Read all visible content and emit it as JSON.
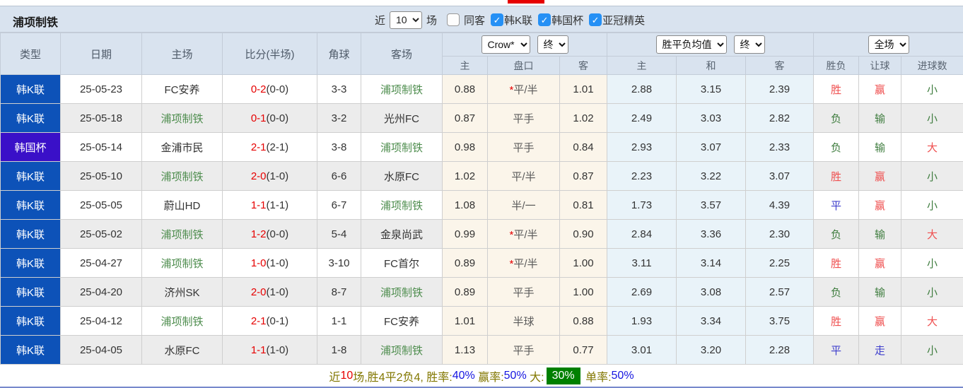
{
  "title": "浦项制铁",
  "controls": {
    "recent_label": "近",
    "recent_value": "10",
    "matches_label": "场",
    "checkboxes": [
      {
        "label": "同客",
        "checked": false
      },
      {
        "label": "韩K联",
        "checked": true
      },
      {
        "label": "韩国杯",
        "checked": true
      },
      {
        "label": "亚冠精英",
        "checked": true
      }
    ]
  },
  "header": {
    "cols": [
      "类型",
      "日期",
      "主场",
      "比分(半场)",
      "角球",
      "客场"
    ],
    "odds_company_select": "Crow*",
    "odds_stage_select": "终",
    "avg_select": "胜平负均值",
    "avg_stage_select": "终",
    "scope_select": "全场",
    "sub": [
      "主",
      "盘口",
      "客",
      "主",
      "和",
      "客",
      "胜负",
      "让球",
      "进球数"
    ]
  },
  "rows": [
    {
      "type": "韩K联",
      "type_cls": "kleague",
      "date": "25-05-23",
      "home": "FC安养",
      "home_green": false,
      "ft": "0-2",
      "ht": "(0-0)",
      "corner": "3-3",
      "away": "浦项制铁",
      "away_green": true,
      "o1": "0.88",
      "star": true,
      "hcp": "平/半",
      "o2": "1.01",
      "a1": "2.88",
      "a2": "3.15",
      "a3": "2.39",
      "r1": {
        "t": "胜",
        "c": "red"
      },
      "r2": {
        "t": "赢",
        "c": "red"
      },
      "r3": {
        "t": "小",
        "c": "green"
      }
    },
    {
      "type": "韩K联",
      "type_cls": "kleague",
      "date": "25-05-18",
      "home": "浦项制铁",
      "home_green": true,
      "ft": "0-1",
      "ht": "(0-0)",
      "corner": "3-2",
      "away": "光州FC",
      "away_green": false,
      "o1": "0.87",
      "star": false,
      "hcp": "平手",
      "o2": "1.02",
      "a1": "2.49",
      "a2": "3.03",
      "a3": "2.82",
      "r1": {
        "t": "负",
        "c": "green"
      },
      "r2": {
        "t": "输",
        "c": "green"
      },
      "r3": {
        "t": "小",
        "c": "green"
      }
    },
    {
      "type": "韩国杯",
      "type_cls": "cup",
      "date": "25-05-14",
      "home": "金浦市民",
      "home_green": false,
      "ft": "2-1",
      "ht": "(2-1)",
      "corner": "3-8",
      "away": "浦项制铁",
      "away_green": true,
      "o1": "0.98",
      "star": false,
      "hcp": "平手",
      "o2": "0.84",
      "a1": "2.93",
      "a2": "3.07",
      "a3": "2.33",
      "r1": {
        "t": "负",
        "c": "green"
      },
      "r2": {
        "t": "输",
        "c": "green"
      },
      "r3": {
        "t": "大",
        "c": "red"
      }
    },
    {
      "type": "韩K联",
      "type_cls": "kleague",
      "date": "25-05-10",
      "home": "浦项制铁",
      "home_green": true,
      "ft": "2-0",
      "ht": "(1-0)",
      "corner": "6-6",
      "away": "水原FC",
      "away_green": false,
      "o1": "1.02",
      "star": false,
      "hcp": "平/半",
      "o2": "0.87",
      "a1": "2.23",
      "a2": "3.22",
      "a3": "3.07",
      "r1": {
        "t": "胜",
        "c": "red"
      },
      "r2": {
        "t": "赢",
        "c": "red"
      },
      "r3": {
        "t": "小",
        "c": "green"
      }
    },
    {
      "type": "韩K联",
      "type_cls": "kleague",
      "date": "25-05-05",
      "home": "蔚山HD",
      "home_green": false,
      "ft": "1-1",
      "ht": "(1-1)",
      "corner": "6-7",
      "away": "浦项制铁",
      "away_green": true,
      "o1": "1.08",
      "star": false,
      "hcp": "半/一",
      "o2": "0.81",
      "a1": "1.73",
      "a2": "3.57",
      "a3": "4.39",
      "r1": {
        "t": "平",
        "c": "blue"
      },
      "r2": {
        "t": "赢",
        "c": "red"
      },
      "r3": {
        "t": "小",
        "c": "green"
      }
    },
    {
      "type": "韩K联",
      "type_cls": "kleague",
      "date": "25-05-02",
      "home": "浦项制铁",
      "home_green": true,
      "ft": "1-2",
      "ht": "(0-0)",
      "corner": "5-4",
      "away": "金泉尚武",
      "away_green": false,
      "o1": "0.99",
      "star": true,
      "hcp": "平/半",
      "o2": "0.90",
      "a1": "2.84",
      "a2": "3.36",
      "a3": "2.30",
      "r1": {
        "t": "负",
        "c": "green"
      },
      "r2": {
        "t": "输",
        "c": "green"
      },
      "r3": {
        "t": "大",
        "c": "red"
      }
    },
    {
      "type": "韩K联",
      "type_cls": "kleague",
      "date": "25-04-27",
      "home": "浦项制铁",
      "home_green": true,
      "ft": "1-0",
      "ht": "(1-0)",
      "corner": "3-10",
      "away": "FC首尔",
      "away_green": false,
      "o1": "0.89",
      "star": true,
      "hcp": "平/半",
      "o2": "1.00",
      "a1": "3.11",
      "a2": "3.14",
      "a3": "2.25",
      "r1": {
        "t": "胜",
        "c": "red"
      },
      "r2": {
        "t": "赢",
        "c": "red"
      },
      "r3": {
        "t": "小",
        "c": "green"
      }
    },
    {
      "type": "韩K联",
      "type_cls": "kleague",
      "date": "25-04-20",
      "home": "济州SK",
      "home_green": false,
      "ft": "2-0",
      "ht": "(1-0)",
      "corner": "8-7",
      "away": "浦项制铁",
      "away_green": true,
      "o1": "0.89",
      "star": false,
      "hcp": "平手",
      "o2": "1.00",
      "a1": "2.69",
      "a2": "3.08",
      "a3": "2.57",
      "r1": {
        "t": "负",
        "c": "green"
      },
      "r2": {
        "t": "输",
        "c": "green"
      },
      "r3": {
        "t": "小",
        "c": "green"
      }
    },
    {
      "type": "韩K联",
      "type_cls": "kleague",
      "date": "25-04-12",
      "home": "浦项制铁",
      "home_green": true,
      "ft": "2-1",
      "ht": "(0-1)",
      "corner": "1-1",
      "away": "FC安养",
      "away_green": false,
      "o1": "1.01",
      "star": false,
      "hcp": "半球",
      "o2": "0.88",
      "a1": "1.93",
      "a2": "3.34",
      "a3": "3.75",
      "r1": {
        "t": "胜",
        "c": "red"
      },
      "r2": {
        "t": "赢",
        "c": "red"
      },
      "r3": {
        "t": "大",
        "c": "red"
      }
    },
    {
      "type": "韩K联",
      "type_cls": "kleague",
      "date": "25-04-05",
      "home": "水原FC",
      "home_green": false,
      "ft": "1-1",
      "ht": "(1-0)",
      "corner": "1-8",
      "away": "浦项制铁",
      "away_green": true,
      "o1": "1.13",
      "star": false,
      "hcp": "平手",
      "o2": "0.77",
      "a1": "3.01",
      "a2": "3.20",
      "a3": "2.28",
      "r1": {
        "t": "平",
        "c": "blue"
      },
      "r2": {
        "t": "走",
        "c": "blue"
      },
      "r3": {
        "t": "小",
        "c": "green"
      }
    }
  ],
  "summary": {
    "segments": [
      {
        "text": "近",
        "style": "olive"
      },
      {
        "text": "10",
        "style": "red"
      },
      {
        "text": "场,胜4平2负4, 胜率:",
        "style": "olive"
      },
      {
        "text": "40%",
        "style": "blue"
      },
      {
        "text": " 赢率:",
        "style": "olive"
      },
      {
        "text": "50%",
        "style": "blue"
      },
      {
        "text": " 大:",
        "style": "olive"
      },
      {
        "text": "30%",
        "style": "badge"
      },
      {
        "text": " 单率:",
        "style": "olive"
      },
      {
        "text": "50%",
        "style": "blue"
      }
    ]
  },
  "colors": {
    "kleague_blue": "#0d52b8",
    "cup_blue": "#3a10c8",
    "checkbox_blue": "#2590f5",
    "win_red": "#ef4f4f",
    "lose_green": "#3f7d3f",
    "draw_blue": "#3d3dcc",
    "badge_green": "#008000",
    "header_bg": "#d9e3ef",
    "odds_bg": "#fbf5ea",
    "avg_bg": "#e9f3f9"
  }
}
